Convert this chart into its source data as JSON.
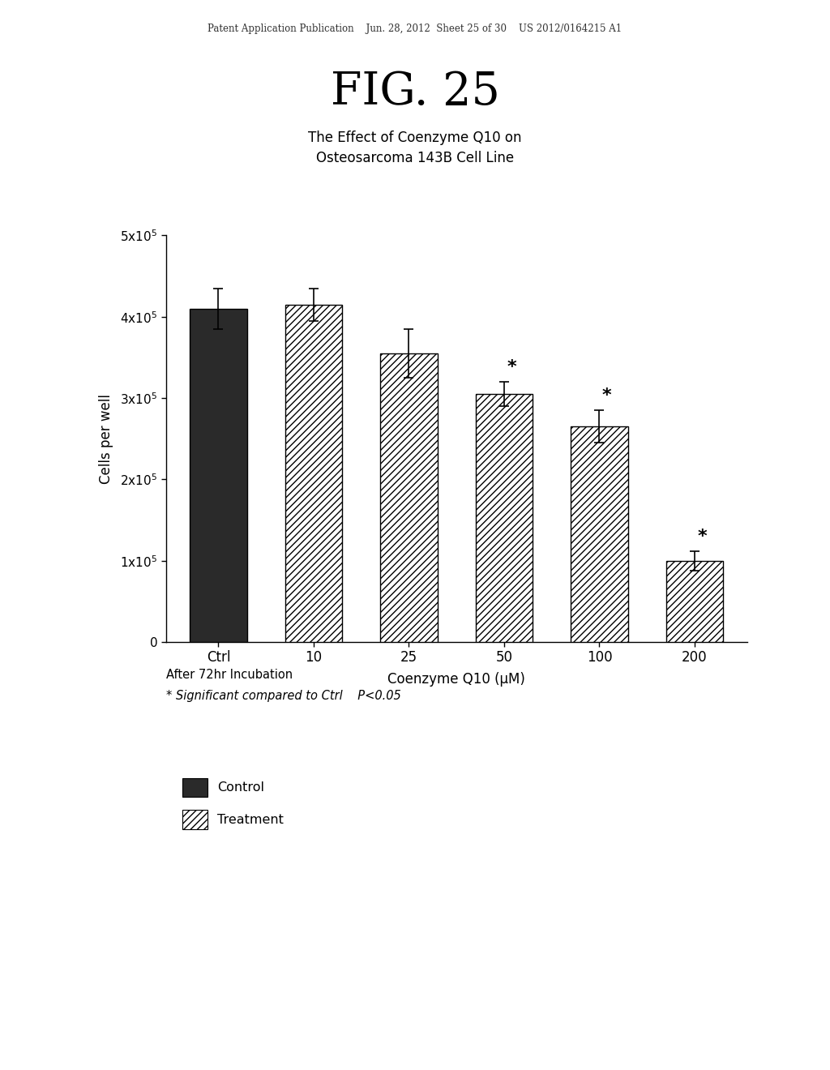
{
  "fig_label": "FIG. 25",
  "title": "The Effect of Coenzyme Q10 on\nOsteosarcoma 143B Cell Line",
  "xlabel": "Coenzyme Q10 (μM)",
  "ylabel": "Cells per well",
  "categories": [
    "Ctrl",
    "10",
    "25",
    "50",
    "100",
    "200"
  ],
  "values": [
    410000,
    415000,
    355000,
    305000,
    265000,
    100000
  ],
  "errors": [
    25000,
    20000,
    30000,
    15000,
    20000,
    12000
  ],
  "significant": [
    false,
    false,
    false,
    true,
    true,
    true
  ],
  "bar_colors": [
    "#2a2a2a",
    "white",
    "white",
    "white",
    "white",
    "white"
  ],
  "hatch_patterns": [
    null,
    "////",
    "////",
    "////",
    "////",
    "////"
  ],
  "ylim": [
    0,
    500000
  ],
  "yticks": [
    0,
    100000,
    200000,
    300000,
    400000,
    500000
  ],
  "ytick_labels": [
    "0",
    "1x10$^5$",
    "2x10$^5$",
    "3x10$^5$",
    "4x10$^5$",
    "5x10$^5$"
  ],
  "annotation_line1": "After 72hr Incubation",
  "annotation_line2": "* Significant compared to Ctrl    P<0.05",
  "legend_control_color": "#2a2a2a",
  "background_color": "#ffffff",
  "patent_header": "Patent Application Publication    Jun. 28, 2012  Sheet 25 of 30    US 2012/0164215 A1"
}
